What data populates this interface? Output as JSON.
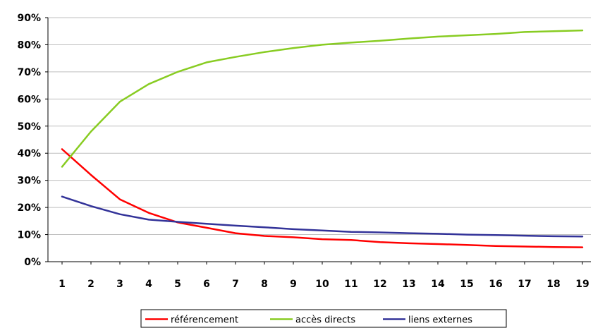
{
  "chart_data": {
    "type": "line",
    "title": "",
    "xlabel": "",
    "ylabel": "",
    "x": [
      1,
      2,
      3,
      4,
      5,
      6,
      7,
      8,
      9,
      10,
      11,
      12,
      13,
      14,
      15,
      16,
      17,
      18,
      19
    ],
    "y_ticks": [
      "0%",
      "10%",
      "20%",
      "30%",
      "40%",
      "50%",
      "60%",
      "70%",
      "80%",
      "90%"
    ],
    "ylim": [
      0,
      90
    ],
    "grid": true,
    "legend_placement": "bottom",
    "series": [
      {
        "name": "référencement",
        "color": "#ff0000",
        "values": [
          41.5,
          32,
          23,
          18,
          14.5,
          12.5,
          10.5,
          9.5,
          9,
          8.3,
          8,
          7.2,
          6.8,
          6.5,
          6.2,
          5.8,
          5.6,
          5.4,
          5.3
        ]
      },
      {
        "name": "accès directs",
        "color": "#88cc22",
        "values": [
          35,
          48,
          59,
          65.5,
          70,
          73.5,
          75.5,
          77.3,
          78.8,
          80,
          80.8,
          81.5,
          82.3,
          83,
          83.5,
          84,
          84.7,
          85,
          85.3
        ]
      },
      {
        "name": "liens externes",
        "color": "#333399",
        "values": [
          24,
          20.5,
          17.5,
          15.5,
          14.7,
          14,
          13.3,
          12.7,
          12,
          11.5,
          11,
          10.8,
          10.5,
          10.3,
          10,
          9.8,
          9.6,
          9.4,
          9.3
        ]
      }
    ]
  }
}
